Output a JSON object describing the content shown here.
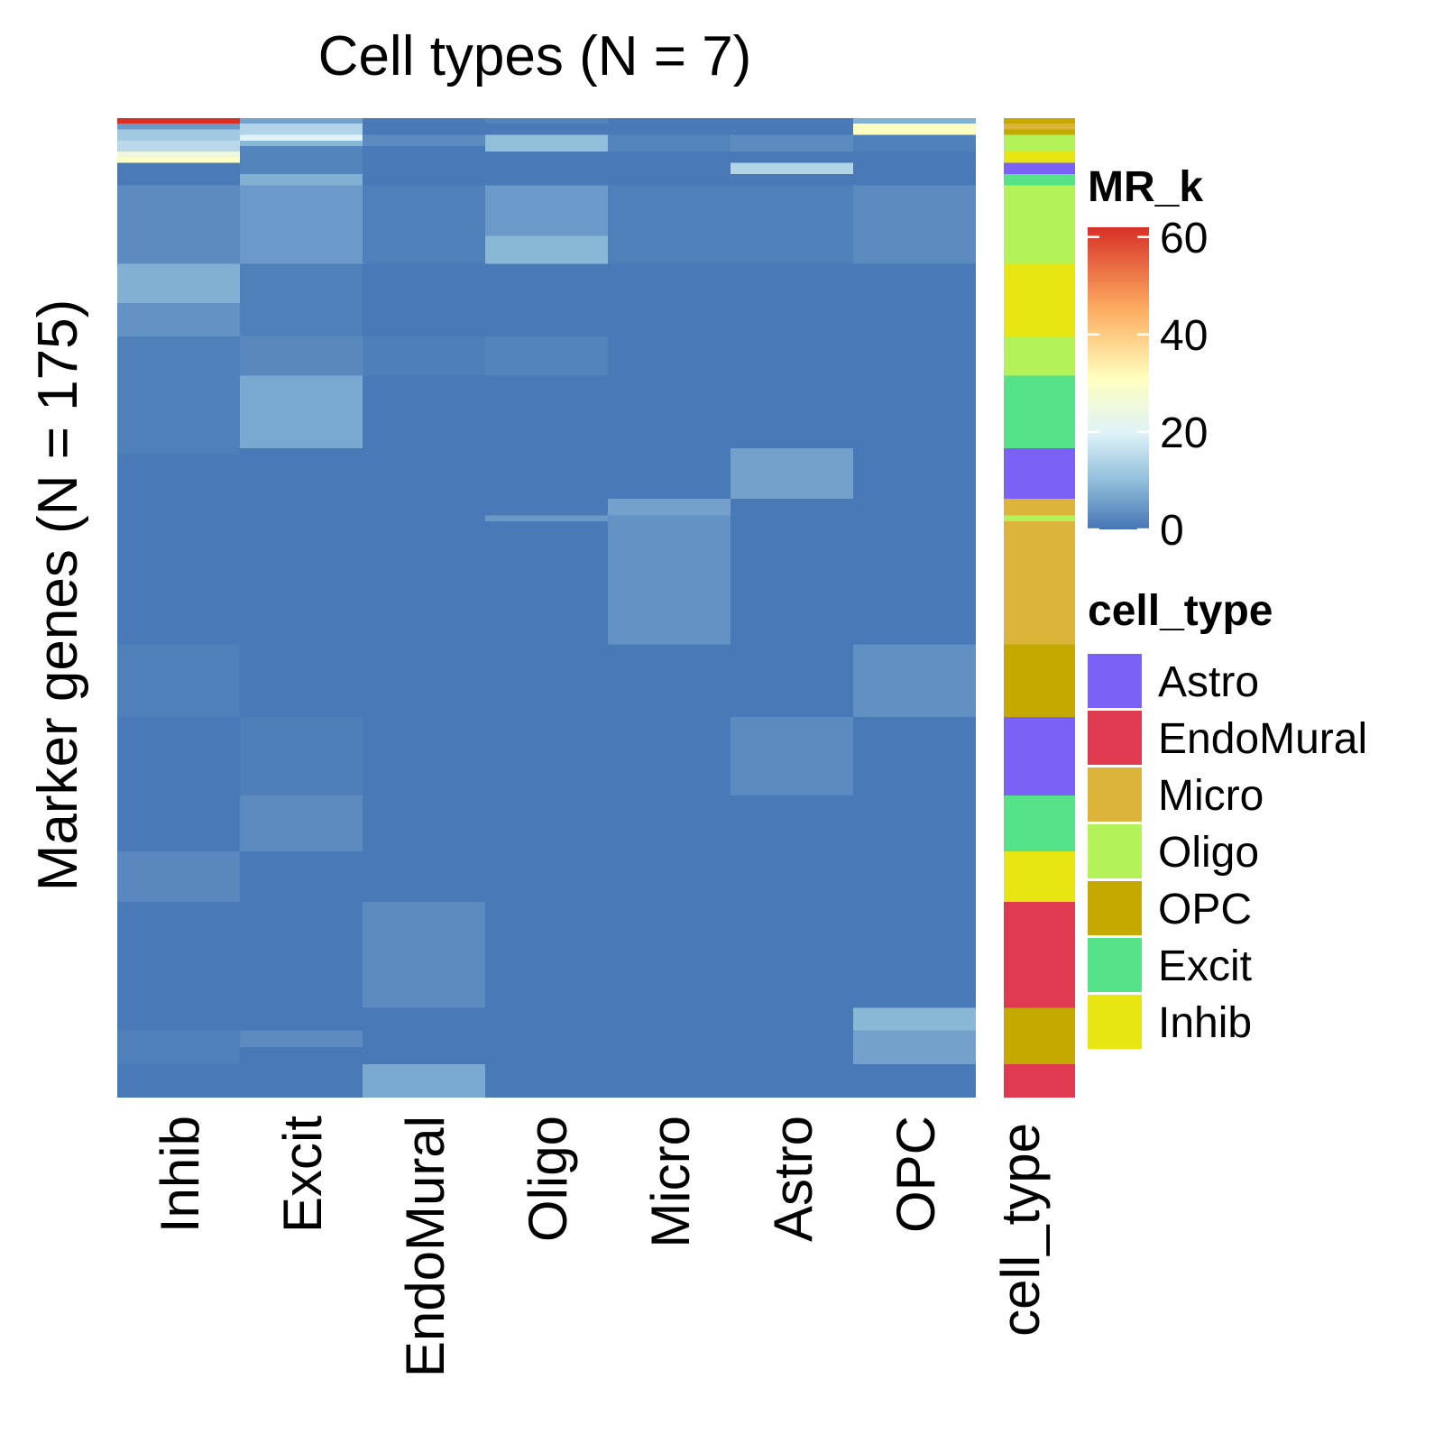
{
  "chart_data": {
    "type": "heatmap",
    "title": "Cell types (N = 7)",
    "xlabel": "",
    "ylabel": "Marker genes (N = 175)",
    "columns": [
      "Inhib",
      "Excit",
      "EndoMural",
      "Oligo",
      "Micro",
      "Astro",
      "OPC"
    ],
    "annotation_column_label": "cell_type",
    "n_rows": 175,
    "value_range": [
      0,
      62
    ],
    "background_value": 0.5,
    "colorbar": {
      "title": "MR_k",
      "ticks": [
        60,
        40,
        20,
        0
      ],
      "stops": [
        {
          "value": 0,
          "color": "#4575b4"
        },
        {
          "value": 10,
          "color": "#91bfdb"
        },
        {
          "value": 20,
          "color": "#e0f3f8"
        },
        {
          "value": 31,
          "color": "#ffffbf"
        },
        {
          "value": 45,
          "color": "#fdae61"
        },
        {
          "value": 62,
          "color": "#d73027"
        }
      ]
    },
    "annotation_legend": {
      "title": "cell_type",
      "items": [
        {
          "name": "Astro",
          "color": "#7b61f5"
        },
        {
          "name": "EndoMural",
          "color": "#e03a50"
        },
        {
          "name": "Micro",
          "color": "#dcb43a"
        },
        {
          "name": "Oligo",
          "color": "#b4f25a"
        },
        {
          "name": "OPC",
          "color": "#c4aa00"
        },
        {
          "name": "Excit",
          "color": "#56e288"
        },
        {
          "name": "Inhib",
          "color": "#e8e612"
        }
      ]
    },
    "row_annotation": [
      {
        "rows": [
          0,
          0
        ],
        "type": "OPC"
      },
      {
        "rows": [
          1,
          1
        ],
        "type": "Micro"
      },
      {
        "rows": [
          2,
          2
        ],
        "type": "OPC"
      },
      {
        "rows": [
          3,
          5
        ],
        "type": "Oligo"
      },
      {
        "rows": [
          6,
          7
        ],
        "type": "Inhib"
      },
      {
        "rows": [
          8,
          9
        ],
        "type": "Astro"
      },
      {
        "rows": [
          10,
          11
        ],
        "type": "Excit"
      },
      {
        "rows": [
          12,
          25
        ],
        "type": "Oligo"
      },
      {
        "rows": [
          26,
          38
        ],
        "type": "Inhib"
      },
      {
        "rows": [
          39,
          45
        ],
        "type": "Oligo"
      },
      {
        "rows": [
          46,
          58
        ],
        "type": "Excit"
      },
      {
        "rows": [
          59,
          67
        ],
        "type": "Astro"
      },
      {
        "rows": [
          68,
          70
        ],
        "type": "Micro"
      },
      {
        "rows": [
          71,
          71
        ],
        "type": "Oligo"
      },
      {
        "rows": [
          72,
          93
        ],
        "type": "Micro"
      },
      {
        "rows": [
          94,
          106
        ],
        "type": "OPC"
      },
      {
        "rows": [
          107,
          120
        ],
        "type": "Astro"
      },
      {
        "rows": [
          121,
          130
        ],
        "type": "Excit"
      },
      {
        "rows": [
          131,
          139
        ],
        "type": "Inhib"
      },
      {
        "rows": [
          140,
          158
        ],
        "type": "EndoMural"
      },
      {
        "rows": [
          159,
          168
        ],
        "type": "OPC"
      },
      {
        "rows": [
          169,
          174
        ],
        "type": "EndoMural"
      }
    ],
    "blocks": [
      {
        "col": "Inhib",
        "rows": [
          0,
          0
        ],
        "value": 62
      },
      {
        "col": "Inhib",
        "rows": [
          1,
          1
        ],
        "value": 5
      },
      {
        "col": "Inhib",
        "rows": [
          2,
          3
        ],
        "value": 12
      },
      {
        "col": "Inhib",
        "rows": [
          4,
          5
        ],
        "value": 15
      },
      {
        "col": "Inhib",
        "rows": [
          6,
          6
        ],
        "value": 25
      },
      {
        "col": "Inhib",
        "rows": [
          7,
          7
        ],
        "value": 31
      },
      {
        "col": "Inhib",
        "rows": [
          8,
          11
        ],
        "value": 0.8
      },
      {
        "col": "Inhib",
        "rows": [
          12,
          25
        ],
        "value": 3
      },
      {
        "col": "Inhib",
        "rows": [
          26,
          32
        ],
        "value": 8
      },
      {
        "col": "Inhib",
        "rows": [
          33,
          38
        ],
        "value": 4
      },
      {
        "col": "Inhib",
        "rows": [
          39,
          59
        ],
        "value": 1.5
      },
      {
        "col": "Inhib",
        "rows": [
          94,
          106
        ],
        "value": 1.5
      },
      {
        "col": "Inhib",
        "rows": [
          131,
          139
        ],
        "value": 2.5
      },
      {
        "col": "Inhib",
        "rows": [
          163,
          168
        ],
        "value": 1.5
      },
      {
        "col": "Excit",
        "rows": [
          0,
          0
        ],
        "value": 6
      },
      {
        "col": "Excit",
        "rows": [
          1,
          2
        ],
        "value": 14
      },
      {
        "col": "Excit",
        "rows": [
          3,
          3
        ],
        "value": 20
      },
      {
        "col": "Excit",
        "rows": [
          4,
          4
        ],
        "value": 9
      },
      {
        "col": "Excit",
        "rows": [
          5,
          9
        ],
        "value": 2
      },
      {
        "col": "Excit",
        "rows": [
          10,
          11
        ],
        "value": 8
      },
      {
        "col": "Excit",
        "rows": [
          12,
          25
        ],
        "value": 5
      },
      {
        "col": "Excit",
        "rows": [
          26,
          38
        ],
        "value": 1.5
      },
      {
        "col": "Excit",
        "rows": [
          39,
          45
        ],
        "value": 2.5
      },
      {
        "col": "Excit",
        "rows": [
          46,
          58
        ],
        "value": 7
      },
      {
        "col": "Excit",
        "rows": [
          107,
          120
        ],
        "value": 1.3
      },
      {
        "col": "Excit",
        "rows": [
          121,
          130
        ],
        "value": 3
      },
      {
        "col": "Excit",
        "rows": [
          163,
          165
        ],
        "value": 3
      },
      {
        "col": "EndoMural",
        "rows": [
          0,
          0
        ],
        "value": 0.8
      },
      {
        "col": "EndoMural",
        "rows": [
          3,
          4
        ],
        "value": 3
      },
      {
        "col": "EndoMural",
        "rows": [
          12,
          25
        ],
        "value": 1.5
      },
      {
        "col": "EndoMural",
        "rows": [
          39,
          45
        ],
        "value": 1.3
      },
      {
        "col": "EndoMural",
        "rows": [
          140,
          158
        ],
        "value": 3
      },
      {
        "col": "EndoMural",
        "rows": [
          169,
          174
        ],
        "value": 7
      },
      {
        "col": "Oligo",
        "rows": [
          0,
          0
        ],
        "value": 2
      },
      {
        "col": "Oligo",
        "rows": [
          3,
          5
        ],
        "value": 10
      },
      {
        "col": "Oligo",
        "rows": [
          12,
          20
        ],
        "value": 5
      },
      {
        "col": "Oligo",
        "rows": [
          21,
          25
        ],
        "value": 9
      },
      {
        "col": "Oligo",
        "rows": [
          39,
          45
        ],
        "value": 2
      },
      {
        "col": "Oligo",
        "rows": [
          71,
          71
        ],
        "value": 5
      },
      {
        "col": "Micro",
        "rows": [
          3,
          5
        ],
        "value": 2
      },
      {
        "col": "Micro",
        "rows": [
          12,
          25
        ],
        "value": 1.5
      },
      {
        "col": "Micro",
        "rows": [
          68,
          70
        ],
        "value": 6
      },
      {
        "col": "Micro",
        "rows": [
          71,
          93
        ],
        "value": 4
      },
      {
        "col": "Astro",
        "rows": [
          3,
          5
        ],
        "value": 3
      },
      {
        "col": "Astro",
        "rows": [
          8,
          9
        ],
        "value": 14
      },
      {
        "col": "Astro",
        "rows": [
          12,
          25
        ],
        "value": 1.5
      },
      {
        "col": "Astro",
        "rows": [
          59,
          67
        ],
        "value": 6
      },
      {
        "col": "Astro",
        "rows": [
          107,
          120
        ],
        "value": 3
      },
      {
        "col": "OPC",
        "rows": [
          0,
          0
        ],
        "value": 8
      },
      {
        "col": "OPC",
        "rows": [
          1,
          2
        ],
        "value": 31
      },
      {
        "col": "OPC",
        "rows": [
          3,
          5
        ],
        "value": 1.5
      },
      {
        "col": "OPC",
        "rows": [
          12,
          25
        ],
        "value": 3
      },
      {
        "col": "OPC",
        "rows": [
          94,
          106
        ],
        "value": 3.5
      },
      {
        "col": "OPC",
        "rows": [
          159,
          162
        ],
        "value": 9
      },
      {
        "col": "OPC",
        "rows": [
          163,
          168
        ],
        "value": 6
      }
    ]
  }
}
